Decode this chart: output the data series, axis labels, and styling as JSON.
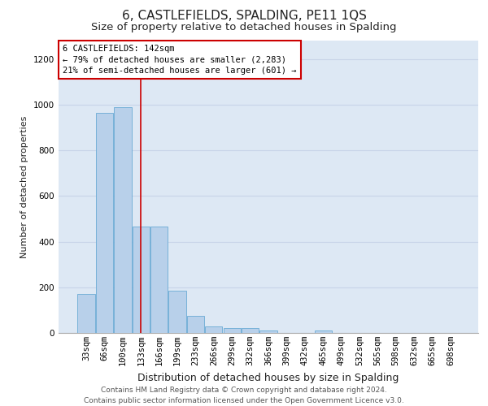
{
  "title": "6, CASTLEFIELDS, SPALDING, PE11 1QS",
  "subtitle": "Size of property relative to detached houses in Spalding",
  "xlabel": "Distribution of detached houses by size in Spalding",
  "ylabel": "Number of detached properties",
  "categories": [
    "33sqm",
    "66sqm",
    "100sqm",
    "133sqm",
    "166sqm",
    "199sqm",
    "233sqm",
    "266sqm",
    "299sqm",
    "332sqm",
    "366sqm",
    "399sqm",
    "432sqm",
    "465sqm",
    "499sqm",
    "532sqm",
    "565sqm",
    "598sqm",
    "632sqm",
    "665sqm",
    "698sqm"
  ],
  "values": [
    170,
    965,
    990,
    465,
    465,
    185,
    75,
    30,
    22,
    20,
    12,
    0,
    0,
    12,
    0,
    0,
    0,
    0,
    0,
    0,
    0
  ],
  "bar_color": "#b8d0ea",
  "bar_edge_color": "#6aaad4",
  "vline_color": "#cc0000",
  "vline_x": 3.0,
  "annotation_title": "6 CASTLEFIELDS: 142sqm",
  "annotation_line1": "← 79% of detached houses are smaller (2,283)",
  "annotation_line2": "21% of semi-detached houses are larger (601) →",
  "annotation_box_facecolor": "#ffffff",
  "annotation_box_edgecolor": "#cc0000",
  "ylim": [
    0,
    1280
  ],
  "yticks": [
    0,
    200,
    400,
    600,
    800,
    1000,
    1200
  ],
  "grid_color": "#c8d4e8",
  "bg_color": "#dde8f4",
  "footer_line1": "Contains HM Land Registry data © Crown copyright and database right 2024.",
  "footer_line2": "Contains public sector information licensed under the Open Government Licence v3.0.",
  "title_fontsize": 11,
  "subtitle_fontsize": 9.5,
  "xlabel_fontsize": 9,
  "ylabel_fontsize": 8,
  "tick_fontsize": 7.5,
  "annot_fontsize": 7.5,
  "footer_fontsize": 6.5
}
